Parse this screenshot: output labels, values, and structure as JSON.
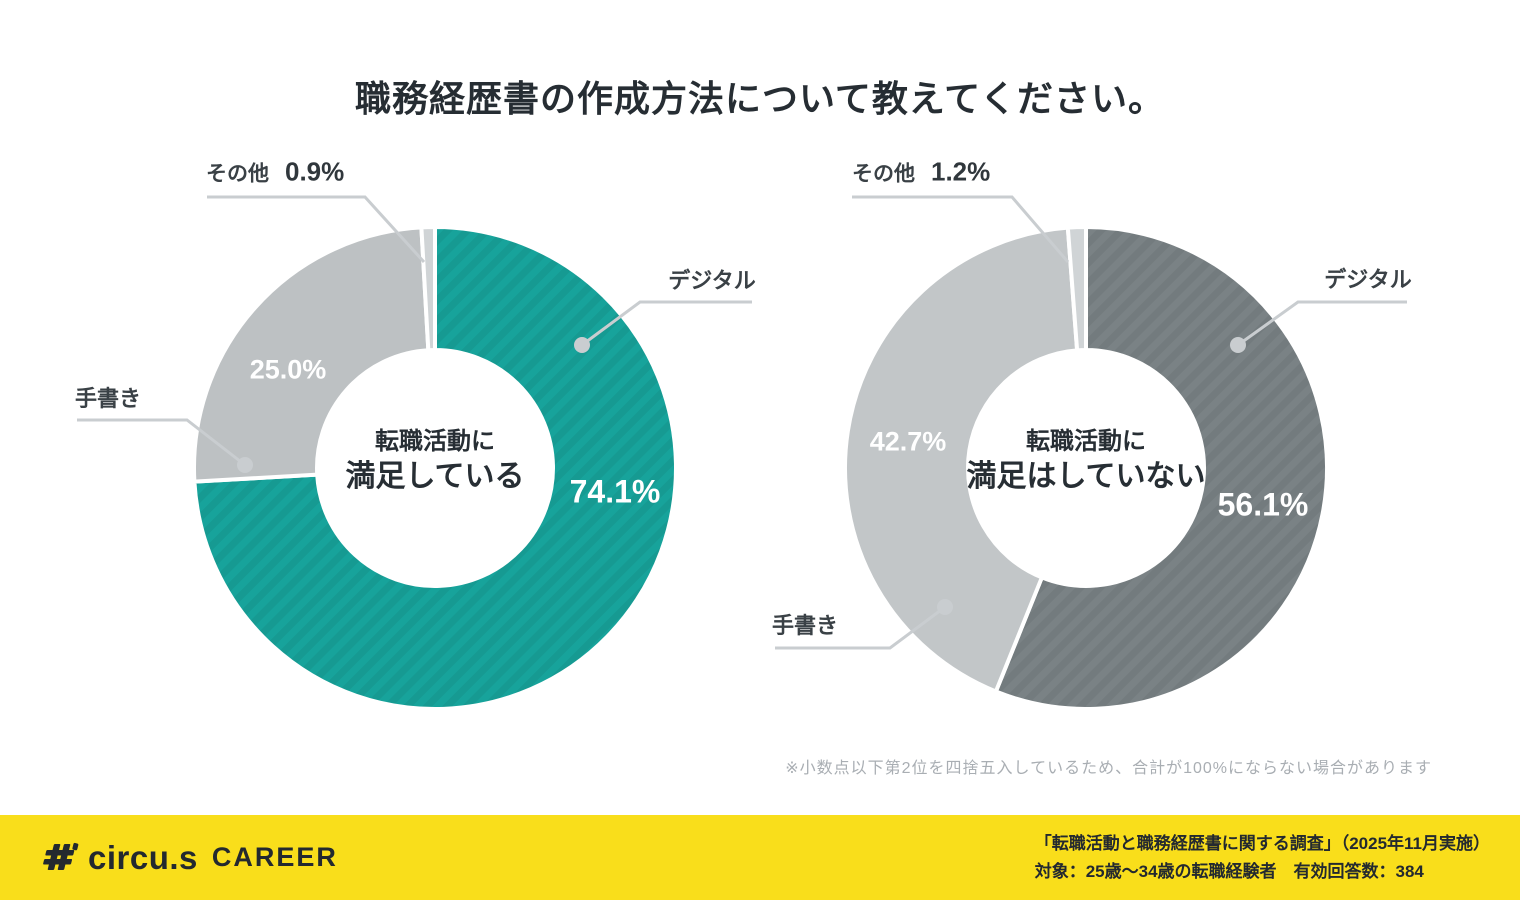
{
  "title": "職務経歴書の作成方法について教えてください。",
  "footnote": "※小数点以下第2位を四捨五入しているため、合計が100%にならない場合があります",
  "footer": {
    "logo_text": "circu.s",
    "logo_suffix": "CAREER",
    "source_line1": "「転職活動と職務経歴書に関する調査」（2025年11月実施）",
    "source_line2": "対象：25歳〜34歳の転職経験者　有効回答数：384",
    "background_color": "#f9de1b"
  },
  "colors": {
    "teal": "#17a39b",
    "dark_gray": "#7a8285",
    "light_gray": "#bdc1c3",
    "light_gray_2": "#c2c6c8",
    "sliver_gray": "#d0d4d6",
    "leader_line": "#c9cdd0",
    "title_ink": "#262d33"
  },
  "chart_data": [
    {
      "type": "pie",
      "donut": true,
      "center_label_lines": [
        "転職活動に",
        "満足している"
      ],
      "start_angle_deg": 0,
      "direction": "clockwise",
      "slices": [
        {
          "label": "デジタル",
          "value": 74.1,
          "pct_text": "74.1%",
          "color": "#17a39b",
          "hatch": true
        },
        {
          "label": "手書き",
          "value": 25.0,
          "pct_text": "25.0%",
          "color": "#bdc1c3",
          "hatch": false
        },
        {
          "label": "その他",
          "value": 0.9,
          "pct_text": "0.9%",
          "color": "#d0d4d6",
          "hatch": false
        }
      ]
    },
    {
      "type": "pie",
      "donut": true,
      "center_label_lines": [
        "転職活動に",
        "満足はしていない"
      ],
      "start_angle_deg": 0,
      "direction": "clockwise",
      "slices": [
        {
          "label": "デジタル",
          "value": 56.1,
          "pct_text": "56.1%",
          "color": "#7a8285",
          "hatch": true
        },
        {
          "label": "手書き",
          "value": 42.7,
          "pct_text": "42.7%",
          "color": "#c2c6c8",
          "hatch": false
        },
        {
          "label": "その他",
          "value": 1.2,
          "pct_text": "1.2%",
          "color": "#d0d4d6",
          "hatch": false
        }
      ]
    }
  ]
}
